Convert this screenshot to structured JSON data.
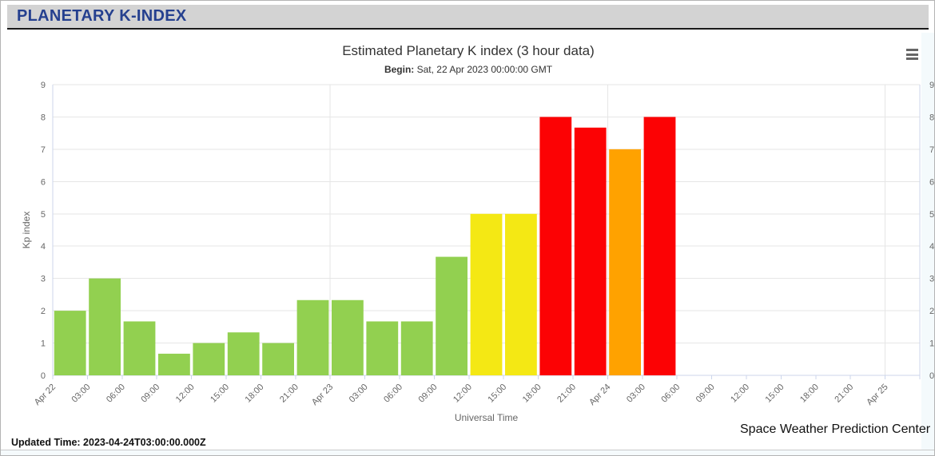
{
  "page": {
    "header": {
      "title": "PLANETARY K-INDEX"
    },
    "footer": {
      "updated_label": "Updated Time: 2023-04-24T03:00:00.000Z",
      "credit": "Space Weather Prediction Center"
    }
  },
  "chart_data": {
    "type": "bar",
    "title": "Estimated Planetary K index (3 hour data)",
    "subtitle_label": "Begin:",
    "subtitle_value": " Sat, 22 Apr 2023 00:00:00 GMT",
    "xlabel": "Universal Time",
    "ylabel": "Kp index",
    "ylim": [
      0,
      9
    ],
    "y_ticks": [
      0,
      1,
      2,
      3,
      4,
      5,
      6,
      7,
      8,
      9
    ],
    "grid": true,
    "legend": false,
    "x_tick_labels": [
      "Apr 22",
      "03:00",
      "06:00",
      "09:00",
      "12:00",
      "15:00",
      "18:00",
      "21:00",
      "Apr 23",
      "03:00",
      "06:00",
      "09:00",
      "12:00",
      "15:00",
      "18:00",
      "21:00",
      "Apr 24",
      "03:00",
      "06:00",
      "09:00",
      "12:00",
      "15:00",
      "18:00",
      "21:00",
      "Apr 25"
    ],
    "slots_total": 25,
    "day_gridline_indices": [
      8,
      16,
      24
    ],
    "bars": [
      {
        "time": "Apr 22 00:00",
        "kp": 2.0,
        "level": "green"
      },
      {
        "time": "Apr 22 03:00",
        "kp": 3.0,
        "level": "green"
      },
      {
        "time": "Apr 22 06:00",
        "kp": 1.67,
        "level": "green"
      },
      {
        "time": "Apr 22 09:00",
        "kp": 0.67,
        "level": "green"
      },
      {
        "time": "Apr 22 12:00",
        "kp": 1.0,
        "level": "green"
      },
      {
        "time": "Apr 22 15:00",
        "kp": 1.33,
        "level": "green"
      },
      {
        "time": "Apr 22 18:00",
        "kp": 1.0,
        "level": "green"
      },
      {
        "time": "Apr 22 21:00",
        "kp": 2.33,
        "level": "green"
      },
      {
        "time": "Apr 23 00:00",
        "kp": 2.33,
        "level": "green"
      },
      {
        "time": "Apr 23 03:00",
        "kp": 1.67,
        "level": "green"
      },
      {
        "time": "Apr 23 06:00",
        "kp": 1.67,
        "level": "green"
      },
      {
        "time": "Apr 23 09:00",
        "kp": 3.67,
        "level": "green"
      },
      {
        "time": "Apr 23 12:00",
        "kp": 5.0,
        "level": "yellow"
      },
      {
        "time": "Apr 23 15:00",
        "kp": 5.0,
        "level": "yellow"
      },
      {
        "time": "Apr 23 18:00",
        "kp": 8.0,
        "level": "red"
      },
      {
        "time": "Apr 23 21:00",
        "kp": 7.67,
        "level": "red"
      },
      {
        "time": "Apr 24 00:00",
        "kp": 7.0,
        "level": "orange"
      },
      {
        "time": "Apr 24 03:00",
        "kp": 8.0,
        "level": "red"
      }
    ],
    "palette": {
      "green": "#92D050",
      "yellow": "#F4E814",
      "orange": "#FFA200",
      "red": "#FC0204"
    },
    "axis_colors": {
      "axis_line": "#CCD6EB",
      "grid": "#E6E6E6",
      "tick_label": "#666666",
      "axis_title": "#666666"
    }
  },
  "icons": {
    "menu": "hamburger-menu-icon"
  },
  "header_colors": {
    "bar_bg": "#D3D3D3",
    "title_text": "#25408F"
  }
}
